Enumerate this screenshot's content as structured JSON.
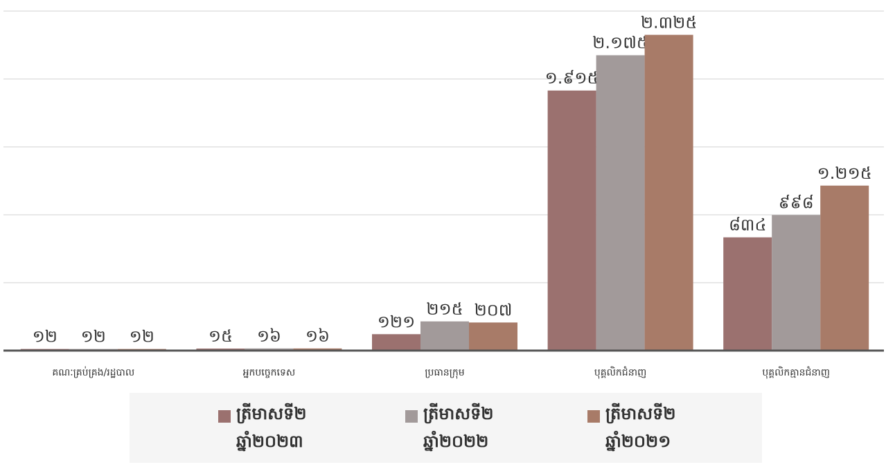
{
  "chart_data": {
    "type": "bar",
    "categories": [
      "គណៈគ្រប់គ្រង/រដ្ឋបាល",
      "អ្នកបច្ចេកទេស",
      "ប្រធានក្រុម",
      "បុគ្គលិកជំនាញ",
      "បុគ្គលិកគ្មានជំនាញ"
    ],
    "series": [
      {
        "name": "ត្រីមាសទី២ ឆ្នាំ២០២៣",
        "color": "#9b716f",
        "values": [
          12,
          15,
          121,
          1915,
          834
        ],
        "value_labels": [
          "១២",
          "១៥",
          "១២១",
          "១.៩១៥",
          "៨៣៤"
        ]
      },
      {
        "name": "ត្រីមាសទី២ ឆ្នាំ២០២២",
        "color": "#a29a9a",
        "values": [
          12,
          16,
          215,
          2175,
          998
        ],
        "value_labels": [
          "១២",
          "១៦",
          "២១៥",
          "២.១៧៥",
          "៩៩៨"
        ]
      },
      {
        "name": "ត្រីមាសទី២ ឆ្នាំ២០២១",
        "color": "#a87b68",
        "values": [
          12,
          16,
          207,
          2325,
          1215
        ],
        "value_labels": [
          "១២",
          "១៦",
          "២០៧",
          "២.៣២៥",
          "១.២១៥"
        ]
      }
    ],
    "ylim": [
      0,
      2500
    ],
    "yticks": [
      0,
      500,
      1000,
      1500,
      2000,
      2500
    ],
    "grid": true
  }
}
